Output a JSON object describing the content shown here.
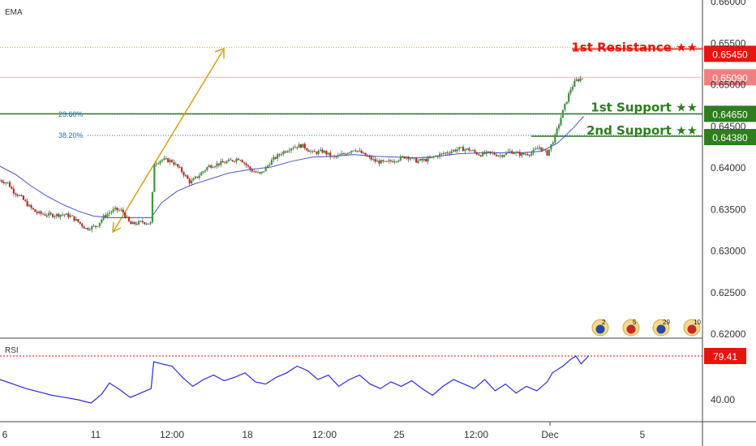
{
  "chart_data": [
    {
      "type": "line",
      "pane": "price",
      "indicator_label": "EMA",
      "x_tick_labels": [
        "6",
        "11",
        "12:00",
        "18",
        "12:00",
        "25",
        "12:00",
        "Dec",
        "5"
      ],
      "y_ticks": [
        "0.66000",
        "0.65500",
        "0.65000",
        "0.64500",
        "0.64000",
        "0.63500",
        "0.63000",
        "0.62500",
        "0.62000"
      ],
      "ylim": [
        0.62,
        0.66
      ],
      "levels": [
        {
          "label": "1st Resistance ★★",
          "value": "0.65450",
          "color": "#e8150f"
        },
        {
          "label": "1st Support ★★",
          "value": "0.64650",
          "color": "#2e7d1f"
        },
        {
          "label": "2nd Support ★★",
          "value": "0.64380",
          "color": "#2e7d1f"
        }
      ],
      "last_price": {
        "value": "0.65090",
        "color": "#f08080"
      },
      "fib_labels": [
        "23.60%",
        "38.20%"
      ],
      "event_markers": [
        "2",
        "5",
        "29",
        "10"
      ],
      "series": [
        {
          "kind": "price",
          "points": [
            [
              0,
              0.6385
            ],
            [
              3,
              0.6382
            ],
            [
              5,
              0.6372
            ],
            [
              8,
              0.6365
            ],
            [
              11,
              0.6354
            ],
            [
              14,
              0.6346
            ],
            [
              17,
              0.6344
            ],
            [
              20,
              0.6343
            ],
            [
              24,
              0.6344
            ],
            [
              27,
              0.6342
            ],
            [
              30,
              0.6335
            ],
            [
              33,
              0.6327
            ],
            [
              37,
              0.633
            ],
            [
              40,
              0.6342
            ],
            [
              44,
              0.635
            ],
            [
              47,
              0.6348
            ],
            [
              50,
              0.6332
            ],
            [
              55,
              0.6335
            ],
            [
              58,
              0.6333
            ],
            [
              59,
              0.6405
            ],
            [
              62,
              0.641
            ],
            [
              66,
              0.6408
            ],
            [
              70,
              0.6395
            ],
            [
              73,
              0.6382
            ],
            [
              77,
              0.6393
            ],
            [
              80,
              0.6402
            ],
            [
              84,
              0.6405
            ],
            [
              88,
              0.6408
            ],
            [
              92,
              0.6412
            ],
            [
              96,
              0.6398
            ],
            [
              100,
              0.6392
            ],
            [
              104,
              0.6408
            ],
            [
              108,
              0.6418
            ],
            [
              112,
              0.6425
            ],
            [
              116,
              0.6427
            ],
            [
              120,
              0.6418
            ],
            [
              124,
              0.642
            ],
            [
              128,
              0.6412
            ],
            [
              132,
              0.6417
            ],
            [
              136,
              0.6423
            ],
            [
              140,
              0.6415
            ],
            [
              144,
              0.6408
            ],
            [
              148,
              0.6406
            ],
            [
              152,
              0.641
            ],
            [
              156,
              0.6414
            ],
            [
              160,
              0.6408
            ],
            [
              164,
              0.641
            ],
            [
              168,
              0.6415
            ],
            [
              172,
              0.6419
            ],
            [
              176,
              0.6423
            ],
            [
              180,
              0.6422
            ],
            [
              184,
              0.6416
            ],
            [
              188,
              0.6418
            ],
            [
              192,
              0.6415
            ],
            [
              196,
              0.642
            ],
            [
              200,
              0.6416
            ],
            [
              204,
              0.6418
            ],
            [
              207,
              0.6425
            ],
            [
              210,
              0.6417
            ],
            [
              213,
              0.6438
            ],
            [
              216,
              0.6468
            ],
            [
              219,
              0.6495
            ],
            [
              221,
              0.6505
            ],
            [
              224,
              0.6509
            ]
          ]
        },
        {
          "kind": "ema",
          "points": [
            [
              0,
              0.6402
            ],
            [
              6,
              0.6392
            ],
            [
              12,
              0.6378
            ],
            [
              18,
              0.6366
            ],
            [
              24,
              0.6356
            ],
            [
              30,
              0.6348
            ],
            [
              36,
              0.6342
            ],
            [
              42,
              0.634
            ],
            [
              48,
              0.634
            ],
            [
              54,
              0.634
            ],
            [
              58,
              0.634
            ],
            [
              62,
              0.6358
            ],
            [
              68,
              0.6372
            ],
            [
              74,
              0.638
            ],
            [
              80,
              0.6386
            ],
            [
              88,
              0.6394
            ],
            [
              96,
              0.6398
            ],
            [
              104,
              0.6401
            ],
            [
              112,
              0.6408
            ],
            [
              120,
              0.6413
            ],
            [
              128,
              0.6414
            ],
            [
              136,
              0.6416
            ],
            [
              144,
              0.6414
            ],
            [
              152,
              0.6413
            ],
            [
              160,
              0.6412
            ],
            [
              168,
              0.6414
            ],
            [
              176,
              0.6417
            ],
            [
              184,
              0.6418
            ],
            [
              192,
              0.6418
            ],
            [
              200,
              0.6418
            ],
            [
              208,
              0.642
            ],
            [
              214,
              0.643
            ],
            [
              220,
              0.6448
            ],
            [
              224,
              0.6462
            ]
          ]
        }
      ]
    },
    {
      "type": "line",
      "pane": "rsi",
      "indicator_label": "RSI",
      "y_tick_label": "40.00",
      "current_value": "79.41",
      "line_color": "#2b2bd6",
      "points": [
        [
          0,
          58
        ],
        [
          5,
          54
        ],
        [
          10,
          50
        ],
        [
          15,
          47
        ],
        [
          20,
          44
        ],
        [
          25,
          42
        ],
        [
          30,
          40
        ],
        [
          35,
          37
        ],
        [
          39,
          45
        ],
        [
          42,
          55
        ],
        [
          46,
          49
        ],
        [
          50,
          42
        ],
        [
          54,
          46
        ],
        [
          58,
          50
        ],
        [
          59,
          74
        ],
        [
          62,
          72
        ],
        [
          66,
          70
        ],
        [
          70,
          60
        ],
        [
          74,
          52
        ],
        [
          78,
          58
        ],
        [
          82,
          62
        ],
        [
          86,
          57
        ],
        [
          90,
          60
        ],
        [
          94,
          64
        ],
        [
          98,
          56
        ],
        [
          102,
          54
        ],
        [
          106,
          60
        ],
        [
          110,
          64
        ],
        [
          114,
          70
        ],
        [
          118,
          66
        ],
        [
          122,
          58
        ],
        [
          126,
          62
        ],
        [
          130,
          52
        ],
        [
          134,
          58
        ],
        [
          138,
          62
        ],
        [
          142,
          54
        ],
        [
          146,
          50
        ],
        [
          150,
          56
        ],
        [
          154,
          52
        ],
        [
          158,
          57
        ],
        [
          162,
          50
        ],
        [
          166,
          44
        ],
        [
          170,
          52
        ],
        [
          174,
          58
        ],
        [
          178,
          54
        ],
        [
          182,
          50
        ],
        [
          186,
          58
        ],
        [
          190,
          48
        ],
        [
          194,
          54
        ],
        [
          198,
          46
        ],
        [
          202,
          52
        ],
        [
          206,
          48
        ],
        [
          210,
          56
        ],
        [
          212,
          64
        ],
        [
          216,
          70
        ],
        [
          219,
          76
        ],
        [
          221,
          79
        ],
        [
          223,
          72
        ],
        [
          226,
          79.4
        ]
      ]
    }
  ]
}
